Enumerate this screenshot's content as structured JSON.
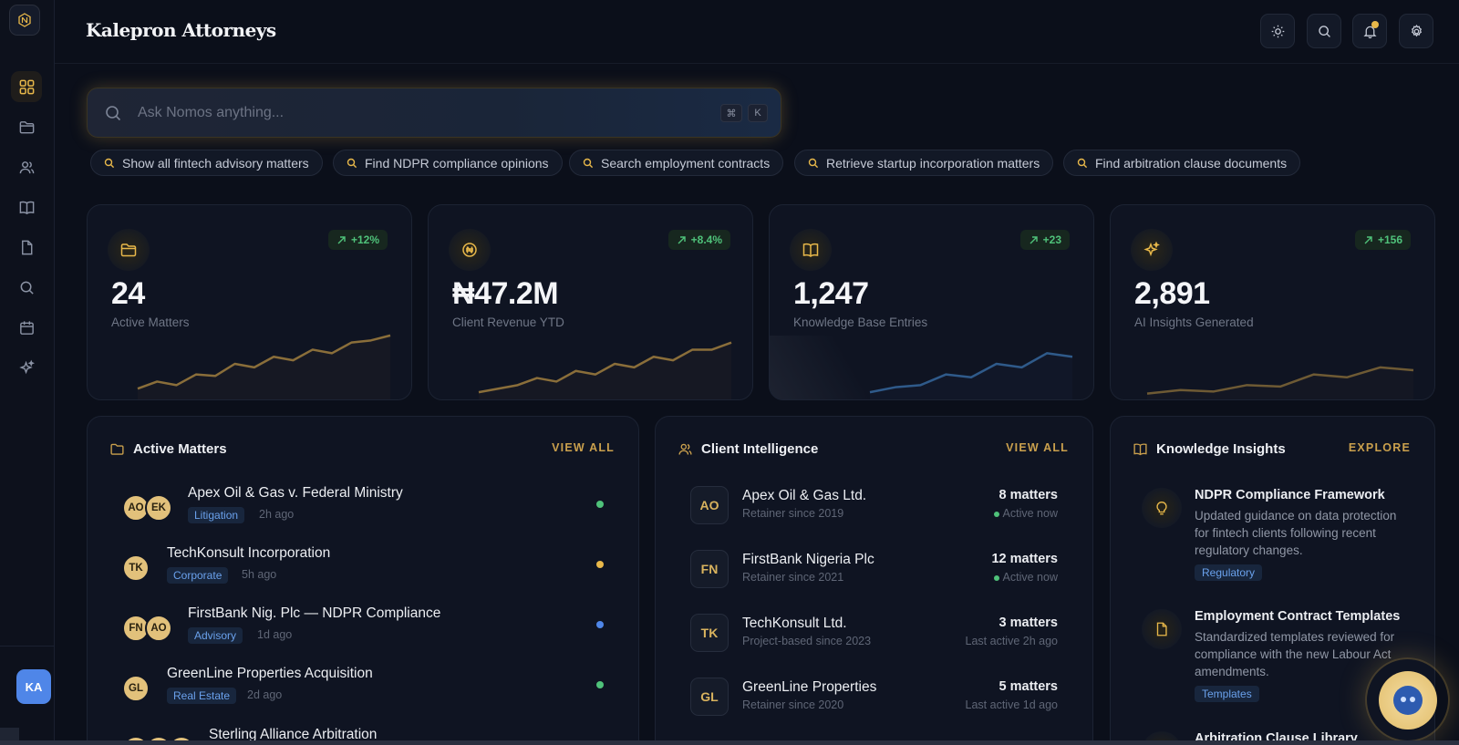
{
  "app": {
    "brand": "Kalepron Attorneys"
  },
  "sidebar": {
    "items": [
      {
        "icon": "grid-icon",
        "active": true
      },
      {
        "icon": "folder-icon"
      },
      {
        "icon": "users-icon"
      },
      {
        "icon": "book-icon"
      },
      {
        "icon": "document-icon"
      },
      {
        "icon": "search-icon"
      },
      {
        "icon": "calendar-icon"
      },
      {
        "icon": "sparkles-icon"
      }
    ],
    "user_initials": "KA"
  },
  "header": {
    "buttons": [
      "sun-icon",
      "search-icon",
      "bell-icon",
      "gear-icon"
    ]
  },
  "search": {
    "placeholder": "Ask Nomos anything...",
    "shortcut_mod": "⌘",
    "shortcut_key": "K"
  },
  "suggestions": [
    "Show all fintech advisory matters",
    "Find NDPR compliance opinions",
    "Search employment contracts",
    "Retrieve startup incorporation matters",
    "Find arbitration clause documents"
  ],
  "stats": [
    {
      "value": "24",
      "label": "Active Matters",
      "change": "+12%",
      "icon": "folder-icon",
      "trend": [
        1,
        2,
        1.5,
        3,
        2.8,
        4.5,
        4,
        5.5,
        5,
        6.5,
        6,
        7.5,
        7.8,
        8.5
      ]
    },
    {
      "value": "₦47.2M",
      "label": "Client Revenue YTD",
      "change": "+8.4%",
      "icon": "naira-coin-icon",
      "trend": [
        0.5,
        1,
        1.5,
        2.5,
        2,
        3.5,
        3,
        4.5,
        4,
        5.5,
        5,
        6.5,
        6.5,
        7.5
      ]
    },
    {
      "value": "1,247",
      "label": "Knowledge Base Entries",
      "change": "+23",
      "icon": "book-icon",
      "trend": [
        0.5,
        1.2,
        1.5,
        3,
        2.6,
        4.5,
        4,
        6,
        5.5
      ]
    },
    {
      "value": "2,891",
      "label": "AI Insights Generated",
      "change": "+156",
      "icon": "sparkles-icon",
      "trend": [
        0.3,
        0.8,
        0.6,
        1.5,
        1.3,
        3,
        2.6,
        4,
        3.6
      ]
    }
  ],
  "active_matters": {
    "title": "Active Matters",
    "link": "VIEW ALL",
    "items": [
      {
        "title": "Apex Oil & Gas v. Federal Ministry",
        "tag": "Litigation",
        "time": "2h ago",
        "avatars": [
          "AO",
          "EK"
        ],
        "status": "#4fc27a"
      },
      {
        "title": "TechKonsult Incorporation",
        "tag": "Corporate",
        "time": "5h ago",
        "avatars": [
          "TK"
        ],
        "status": "#e8b84a"
      },
      {
        "title": "FirstBank Nig. Plc — NDPR Compliance",
        "tag": "Advisory",
        "time": "1d ago",
        "avatars": [
          "FN",
          "AO"
        ],
        "status": "#4f86e8"
      },
      {
        "title": "GreenLine Properties Acquisition",
        "tag": "Real Estate",
        "time": "2d ago",
        "avatars": [
          "GL"
        ],
        "status": "#4fc27a"
      },
      {
        "title": "Sterling Alliance Arbitration",
        "tag": "",
        "time": "",
        "avatars": [
          "SA",
          "AO",
          "EK"
        ],
        "status": "#4fc27a"
      }
    ]
  },
  "client_intelligence": {
    "title": "Client Intelligence",
    "link": "VIEW ALL",
    "items": [
      {
        "initials": "AO",
        "name": "Apex Oil & Gas Ltd.",
        "since": "Retainer since 2019",
        "matters": "8 matters",
        "status": "Active now",
        "active": true
      },
      {
        "initials": "FN",
        "name": "FirstBank Nigeria Plc",
        "since": "Retainer since 2021",
        "matters": "12 matters",
        "status": "Active now",
        "active": true
      },
      {
        "initials": "TK",
        "name": "TechKonsult Ltd.",
        "since": "Project-based since 2023",
        "matters": "3 matters",
        "status": "Last active 2h ago",
        "active": false
      },
      {
        "initials": "GL",
        "name": "GreenLine Properties",
        "since": "Retainer since 2020",
        "matters": "5 matters",
        "status": "Last active 1d ago",
        "active": false
      }
    ]
  },
  "knowledge": {
    "title": "Knowledge Insights",
    "link": "EXPLORE",
    "items": [
      {
        "title": "NDPR Compliance Framework",
        "desc": "Updated guidance on data protection for fintech clients following recent regulatory changes.",
        "tag": "Regulatory",
        "icon": "lightbulb-icon"
      },
      {
        "title": "Employment Contract Templates",
        "desc": "Standardized templates reviewed for compliance with the new Labour Act amendments.",
        "tag": "Templates",
        "icon": "document-icon"
      },
      {
        "title": "Arbitration Clause Library",
        "desc": "",
        "tag": "",
        "icon": "scale-icon"
      }
    ]
  },
  "colors": {
    "accent": "#e8b84a",
    "positive": "#4fc27a",
    "link": "#caa04d",
    "tag_text": "#6aa1ec"
  }
}
